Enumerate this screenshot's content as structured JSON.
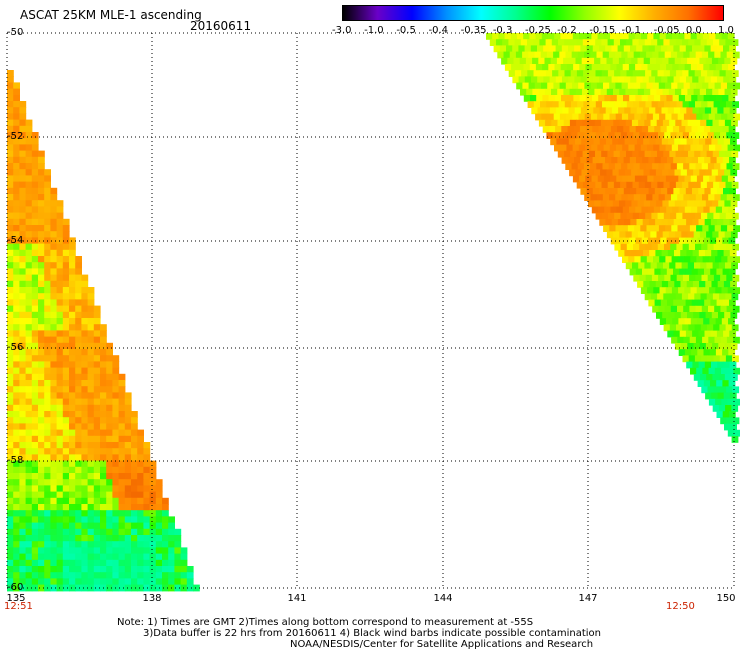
{
  "header": {
    "title": "ASCAT 25KM MLE-1 ascending",
    "date": "20160611"
  },
  "colorbar": {
    "labels": [
      "-3.0",
      "-1.0",
      "-0.5",
      "-0.4",
      "-0.35",
      "-0.3",
      "-0.25",
      "-0.2",
      "-0.15",
      "-0.1",
      "-0.05",
      "0.0",
      "1.0"
    ],
    "colors": [
      "#000000",
      "#6a00c8",
      "#0000ff",
      "#0090ff",
      "#00ffff",
      "#00ff90",
      "#00ff00",
      "#90ff00",
      "#ffff00",
      "#ffb000",
      "#ff7000",
      "#ff0000"
    ]
  },
  "map": {
    "lat_labels": [
      "-50",
      "-52",
      "-54",
      "-56",
      "-58",
      "-60"
    ],
    "lon_labels": [
      "135",
      "138",
      "141",
      "144",
      "147",
      "150"
    ],
    "lat_range": [
      -60,
      -50
    ],
    "lon_range": [
      135,
      150
    ],
    "time_left": "12:51",
    "time_right": "12:50"
  },
  "notes": {
    "line1": "Note: 1) Times are GMT 2)Times along bottom correspond to measurement at -55S",
    "line2": "3)Data buffer is 22 hrs from 20160611 4) Black wind barbs indicate possible contamination",
    "line3": "NOAA/NESDIS/Center for Satellite Applications and Research"
  }
}
